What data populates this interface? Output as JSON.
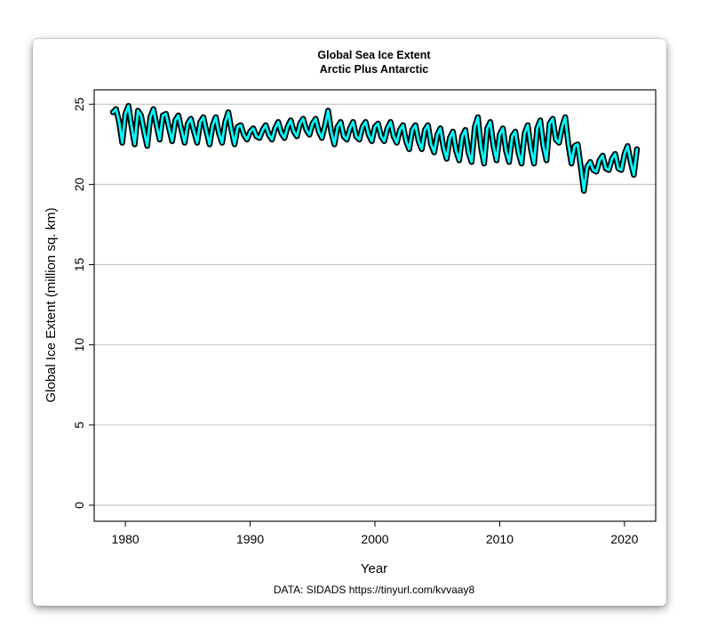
{
  "chart_data": {
    "type": "line",
    "title": "Global Sea Ice Extent",
    "subtitle": "Arctic Plus Antarctic",
    "xlabel": "Year",
    "ylabel": "Global Ice Extent (million sq. km)",
    "source_note": "DATA: SIDADS https://tinyurl.com/kvvaay8",
    "xlim": [
      1977.5,
      2022.5
    ],
    "ylim": [
      -1,
      25.9
    ],
    "x_ticks": [
      1980,
      1990,
      2000,
      2010,
      2020
    ],
    "y_ticks": [
      0,
      5,
      10,
      15,
      20,
      25
    ],
    "grid": "horizontal",
    "line_color": "#00ffff",
    "outline_color": "#000000",
    "series": [
      {
        "x": [
          1979.0,
          1979.25,
          1979.5,
          1979.75,
          1980.0,
          1980.25,
          1980.5,
          1980.75,
          1981.0,
          1981.25,
          1981.5,
          1981.75,
          1982.0,
          1982.25,
          1982.5,
          1982.75,
          1983.0,
          1983.25,
          1983.5,
          1983.75,
          1984.0,
          1984.25,
          1984.5,
          1984.75,
          1985.0,
          1985.25,
          1985.5,
          1985.75,
          1986.0,
          1986.25,
          1986.5,
          1986.75,
          1987.0,
          1987.25,
          1987.5,
          1987.75,
          1988.0,
          1988.25,
          1988.5,
          1988.75,
          1989.0,
          1989.25,
          1989.5,
          1989.75,
          1990.0,
          1990.25,
          1990.5,
          1990.75,
          1991.0,
          1991.25,
          1991.5,
          1991.75,
          1992.0,
          1992.25,
          1992.5,
          1992.75,
          1993.0,
          1993.25,
          1993.5,
          1993.75,
          1994.0,
          1994.25,
          1994.5,
          1994.75,
          1995.0,
          1995.25,
          1995.5,
          1995.75,
          1996.0,
          1996.25,
          1996.5,
          1996.75,
          1997.0,
          1997.25,
          1997.5,
          1997.75,
          1998.0,
          1998.25,
          1998.5,
          1998.75,
          1999.0,
          1999.25,
          1999.5,
          1999.75,
          2000.0,
          2000.25,
          2000.5,
          2000.75,
          2001.0,
          2001.25,
          2001.5,
          2001.75,
          2002.0,
          2002.25,
          2002.5,
          2002.75,
          2003.0,
          2003.25,
          2003.5,
          2003.75,
          2004.0,
          2004.25,
          2004.5,
          2004.75,
          2005.0,
          2005.25,
          2005.5,
          2005.75,
          2006.0,
          2006.25,
          2006.5,
          2006.75,
          2007.0,
          2007.25,
          2007.5,
          2007.75,
          2008.0,
          2008.25,
          2008.5,
          2008.75,
          2009.0,
          2009.25,
          2009.5,
          2009.75,
          2010.0,
          2010.25,
          2010.5,
          2010.75,
          2011.0,
          2011.25,
          2011.5,
          2011.75,
          2012.0,
          2012.25,
          2012.5,
          2012.75,
          2013.0,
          2013.25,
          2013.5,
          2013.75,
          2014.0,
          2014.25,
          2014.5,
          2014.75,
          2015.0,
          2015.25,
          2015.5,
          2015.75,
          2016.0,
          2016.25,
          2016.5,
          2016.75,
          2017.0,
          2017.25,
          2017.5,
          2017.75,
          2018.0,
          2018.25,
          2018.5,
          2018.75,
          2019.0,
          2019.25,
          2019.5,
          2019.75,
          2020.0,
          2020.25,
          2020.5,
          2020.75,
          2021.0
        ],
        "y": [
          24.5,
          24.7,
          23.9,
          22.6,
          24.4,
          24.9,
          23.6,
          22.5,
          24.6,
          24.3,
          23.3,
          22.4,
          24.2,
          24.7,
          23.7,
          22.8,
          24.3,
          24.4,
          23.5,
          22.7,
          24.0,
          24.3,
          23.4,
          22.6,
          23.8,
          24.1,
          23.3,
          22.6,
          23.9,
          24.2,
          23.3,
          22.5,
          23.7,
          24.2,
          23.2,
          22.6,
          23.9,
          24.5,
          23.4,
          22.5,
          23.6,
          23.7,
          23.1,
          22.8,
          23.3,
          23.5,
          23.0,
          22.9,
          23.4,
          23.7,
          23.1,
          22.8,
          23.5,
          23.9,
          23.2,
          22.9,
          23.6,
          24.0,
          23.3,
          23.0,
          23.8,
          24.1,
          23.4,
          23.1,
          23.8,
          24.1,
          23.3,
          22.9,
          23.7,
          24.6,
          23.3,
          22.5,
          23.6,
          23.9,
          23.0,
          22.8,
          23.5,
          23.9,
          23.0,
          22.8,
          23.6,
          23.9,
          23.1,
          22.7,
          23.6,
          23.8,
          23.0,
          22.7,
          23.5,
          23.9,
          23.0,
          22.6,
          23.4,
          23.7,
          22.7,
          22.2,
          23.4,
          23.7,
          22.7,
          22.2,
          23.4,
          23.7,
          22.5,
          22.0,
          23.1,
          23.5,
          22.3,
          21.6,
          22.9,
          23.3,
          22.1,
          21.5,
          23.0,
          23.4,
          22.0,
          21.4,
          23.6,
          24.2,
          22.3,
          21.3,
          23.5,
          23.9,
          22.4,
          21.5,
          23.1,
          23.5,
          22.1,
          21.4,
          23.0,
          23.3,
          22.0,
          21.3,
          23.2,
          23.7,
          22.2,
          21.3,
          23.5,
          24.0,
          22.4,
          21.5,
          23.8,
          24.1,
          22.8,
          22.6,
          23.6,
          24.2,
          22.5,
          21.3,
          22.4,
          22.5,
          21.1,
          19.6,
          21.1,
          21.4,
          20.9,
          20.8,
          21.5,
          21.8,
          21.0,
          20.9,
          21.6,
          21.9,
          21.0,
          20.9,
          21.9,
          22.4,
          21.4,
          20.6,
          22.2
        ]
      }
    ]
  }
}
